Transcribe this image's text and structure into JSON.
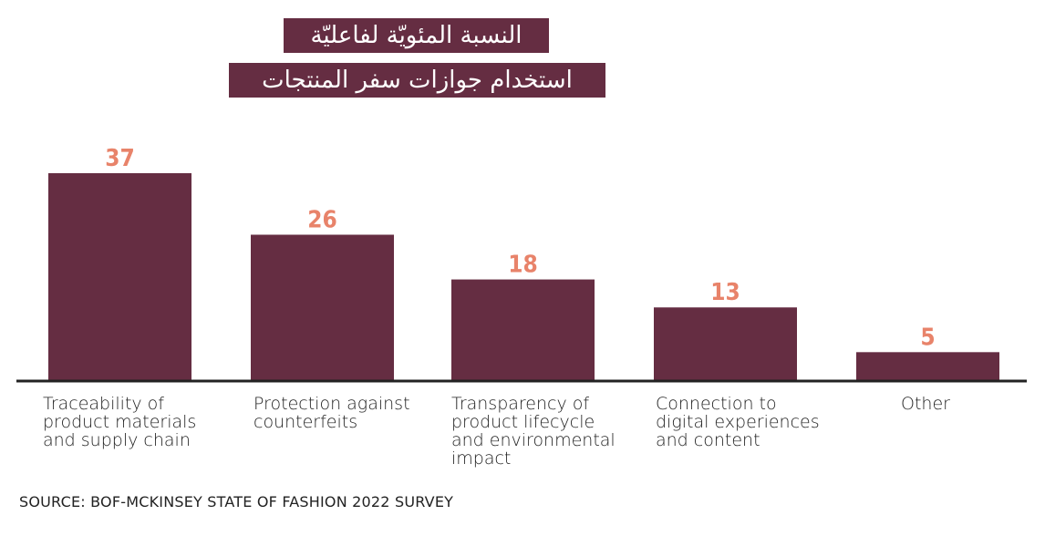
{
  "chart_data": {
    "type": "bar",
    "title": [
      "النسبة المئويّة لفاعليّة",
      "استخدام جوازات سفر المنتجات"
    ],
    "categories": [
      [
        "Traceability of",
        "product materials",
        "and supply chain"
      ],
      [
        "Protection against",
        "counterfeits"
      ],
      [
        "Transparency of",
        "product lifecycle",
        "and environmental",
        "impact"
      ],
      [
        "Connection to",
        "digital experiences",
        "and content"
      ],
      [
        "Other"
      ]
    ],
    "values": [
      37,
      26,
      18,
      13,
      5
    ],
    "value_labels": [
      "37",
      "26",
      "18",
      "13",
      "5"
    ],
    "xlabel": "",
    "ylabel": "",
    "ylim": [
      0,
      37
    ],
    "grid": false,
    "colors": {
      "bar": "#652d42",
      "value_label": "#e8836a",
      "axis": "#222222",
      "title_background": "#652d42",
      "title_text": "#ffffff"
    },
    "source": "SOURCE: BOF-MCKINSEY STATE OF FASHION 2022 SURVEY"
  }
}
